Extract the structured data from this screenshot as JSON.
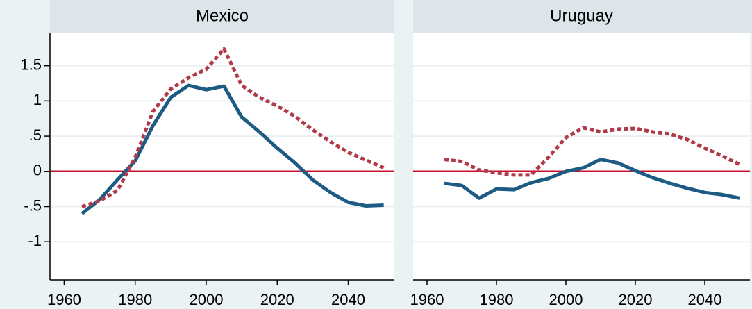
{
  "chart_data": [
    {
      "type": "line",
      "title": "Mexico",
      "x": [
        1965,
        1970,
        1975,
        1980,
        1985,
        1990,
        1995,
        2000,
        2005,
        2010,
        2015,
        2020,
        2025,
        2030,
        2035,
        2040,
        2045,
        2050
      ],
      "series": [
        {
          "color": "#1d5a84",
          "style": "solid",
          "values": [
            -0.6,
            -0.4,
            -0.12,
            0.15,
            0.65,
            1.05,
            1.22,
            1.16,
            1.21,
            0.77,
            0.56,
            0.33,
            0.12,
            -0.12,
            -0.3,
            -0.44,
            -0.49,
            -0.48
          ]
        },
        {
          "color": "#b03a48",
          "style": "dashed",
          "values": [
            -0.5,
            -0.42,
            -0.27,
            0.2,
            0.85,
            1.17,
            1.33,
            1.45,
            1.74,
            1.22,
            1.05,
            0.93,
            0.78,
            0.59,
            0.42,
            0.27,
            0.16,
            0.05
          ]
        }
      ],
      "reference_line": 0,
      "reference_color": "#c8102e",
      "xlim": [
        1956,
        2053
      ],
      "ylim": [
        -1.54,
        1.97
      ],
      "xticks": [
        1960,
        1980,
        2000,
        2020,
        2040
      ],
      "yticks": [
        -1,
        {
          "value": -0.5,
          "label": "-.5"
        },
        0,
        {
          "value": 0.5,
          "label": ".5"
        },
        1,
        1.5
      ],
      "grid": true
    },
    {
      "type": "line",
      "title": "Uruguay",
      "x": [
        1965,
        1970,
        1975,
        1980,
        1985,
        1990,
        1995,
        2000,
        2005,
        2010,
        2015,
        2020,
        2025,
        2030,
        2035,
        2040,
        2045,
        2050
      ],
      "series": [
        {
          "color": "#1d5a84",
          "style": "solid",
          "values": [
            -0.17,
            -0.2,
            -0.38,
            -0.25,
            -0.26,
            -0.16,
            -0.1,
            0.0,
            0.05,
            0.17,
            0.12,
            0.01,
            -0.09,
            -0.17,
            -0.24,
            -0.3,
            -0.33,
            -0.38
          ]
        },
        {
          "color": "#b03a48",
          "style": "dashed",
          "values": [
            0.17,
            0.14,
            0.02,
            -0.02,
            -0.05,
            -0.05,
            0.2,
            0.48,
            0.62,
            0.56,
            0.6,
            0.61,
            0.56,
            0.53,
            0.45,
            0.33,
            0.22,
            0.1
          ]
        }
      ],
      "reference_line": 0,
      "reference_color": "#c8102e",
      "xlim": [
        1956,
        2053
      ],
      "ylim": [
        -1.54,
        1.97
      ],
      "xticks": [
        1960,
        1980,
        2000,
        2020,
        2040
      ],
      "yticks": [
        -1,
        -0.5,
        0,
        0.5,
        1,
        1.5
      ],
      "grid": true
    }
  ]
}
